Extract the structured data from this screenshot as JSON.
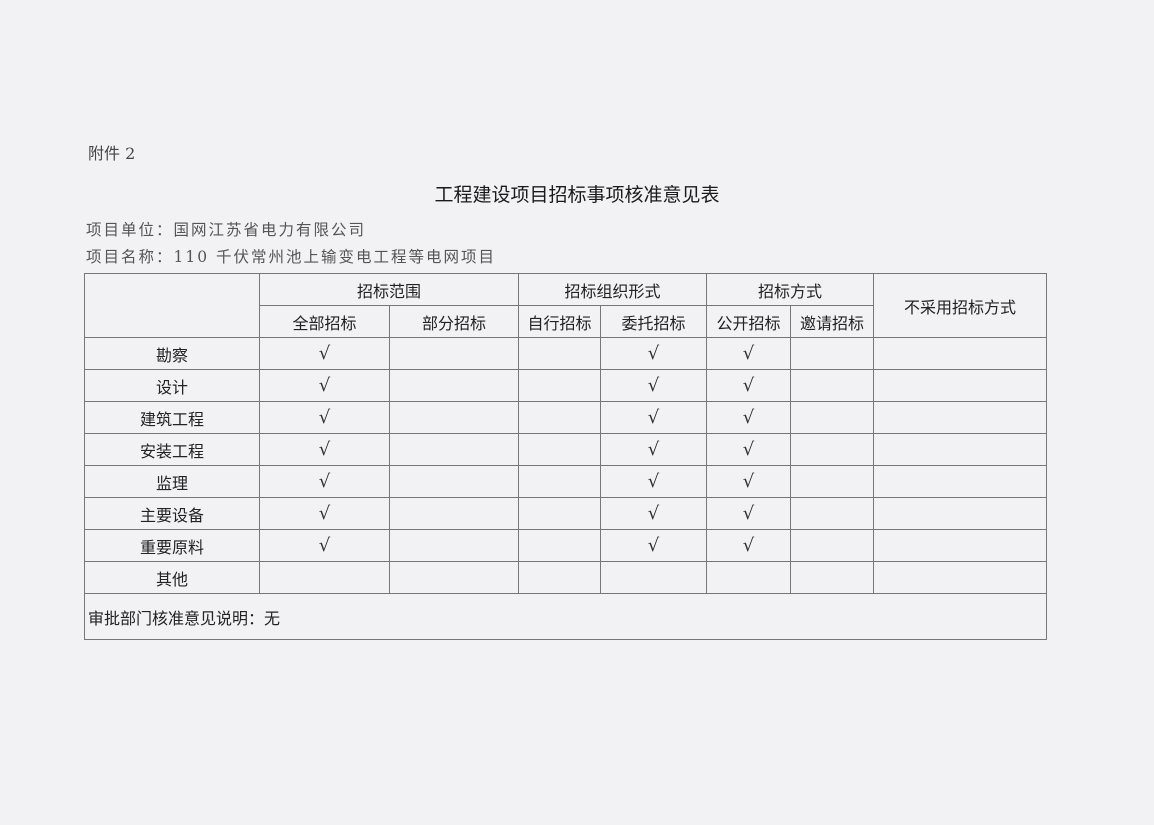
{
  "annex_label": "附件 2",
  "title": "工程建设项目招标事项核准意见表",
  "project_unit": "项目单位：国网江苏省电力有限公司",
  "project_name": "项目名称：110 千伏常州池上输变电工程等电网项目",
  "table": {
    "groups": {
      "scope": "招标范围",
      "organization": "招标组织形式",
      "method": "招标方式",
      "no_tender": "不采用招标方式"
    },
    "subheaders": [
      "全部招标",
      "部分招标",
      "自行招标",
      "委托招标",
      "公开招标",
      "邀请招标"
    ],
    "check_mark": "√",
    "rows": [
      {
        "label": "勘察",
        "checks": [
          true,
          false,
          false,
          true,
          true,
          false,
          false
        ]
      },
      {
        "label": "设计",
        "checks": [
          true,
          false,
          false,
          true,
          true,
          false,
          false
        ]
      },
      {
        "label": "建筑工程",
        "checks": [
          true,
          false,
          false,
          true,
          true,
          false,
          false
        ]
      },
      {
        "label": "安装工程",
        "checks": [
          true,
          false,
          false,
          true,
          true,
          false,
          false
        ]
      },
      {
        "label": "监理",
        "checks": [
          true,
          false,
          false,
          true,
          true,
          false,
          false
        ]
      },
      {
        "label": "主要设备",
        "checks": [
          true,
          false,
          false,
          true,
          true,
          false,
          false
        ]
      },
      {
        "label": "重要原料",
        "checks": [
          true,
          false,
          false,
          true,
          true,
          false,
          false
        ]
      },
      {
        "label": "其他",
        "checks": [
          false,
          false,
          false,
          false,
          false,
          false,
          false
        ]
      }
    ],
    "note": "审批部门核准意见说明：无"
  }
}
